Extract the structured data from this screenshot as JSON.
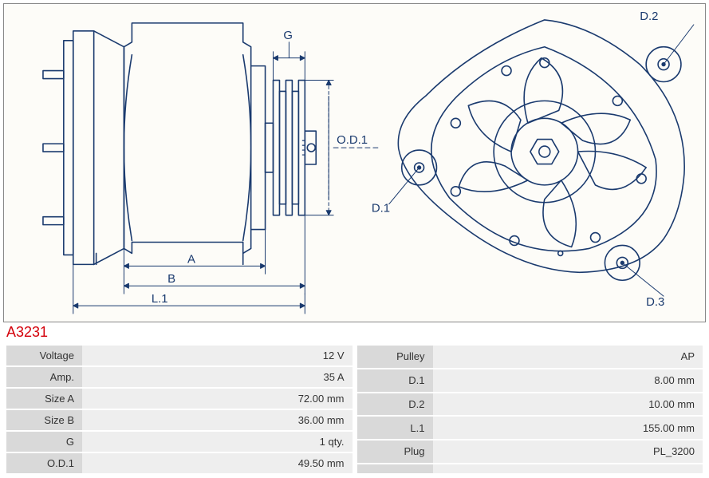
{
  "part_code": "A3231",
  "diagram": {
    "stroke": "#1a3a6e",
    "stroke_width": 1.6,
    "text_color": "#1a3a6e",
    "bg": "#fdfcf8",
    "labels": {
      "G": "G",
      "OD1": "O.D.1",
      "A": "A",
      "B": "B",
      "L1": "L.1",
      "D1": "D.1",
      "D2": "D.2",
      "D3": "D.3"
    }
  },
  "spec_left": [
    {
      "k": "Voltage",
      "v": "12 V"
    },
    {
      "k": "Amp.",
      "v": "35 A"
    },
    {
      "k": "Size A",
      "v": "72.00 mm"
    },
    {
      "k": "Size B",
      "v": "36.00 mm"
    },
    {
      "k": "G",
      "v": "1 qty."
    },
    {
      "k": "O.D.1",
      "v": "49.50 mm"
    }
  ],
  "spec_right": [
    {
      "k": "Pulley",
      "v": "AP"
    },
    {
      "k": "D.1",
      "v": "8.00 mm"
    },
    {
      "k": "D.2",
      "v": "10.00 mm"
    },
    {
      "k": "L.1",
      "v": "155.00 mm"
    },
    {
      "k": "Plug",
      "v": "PL_3200"
    },
    {
      "k": "",
      "v": ""
    }
  ]
}
